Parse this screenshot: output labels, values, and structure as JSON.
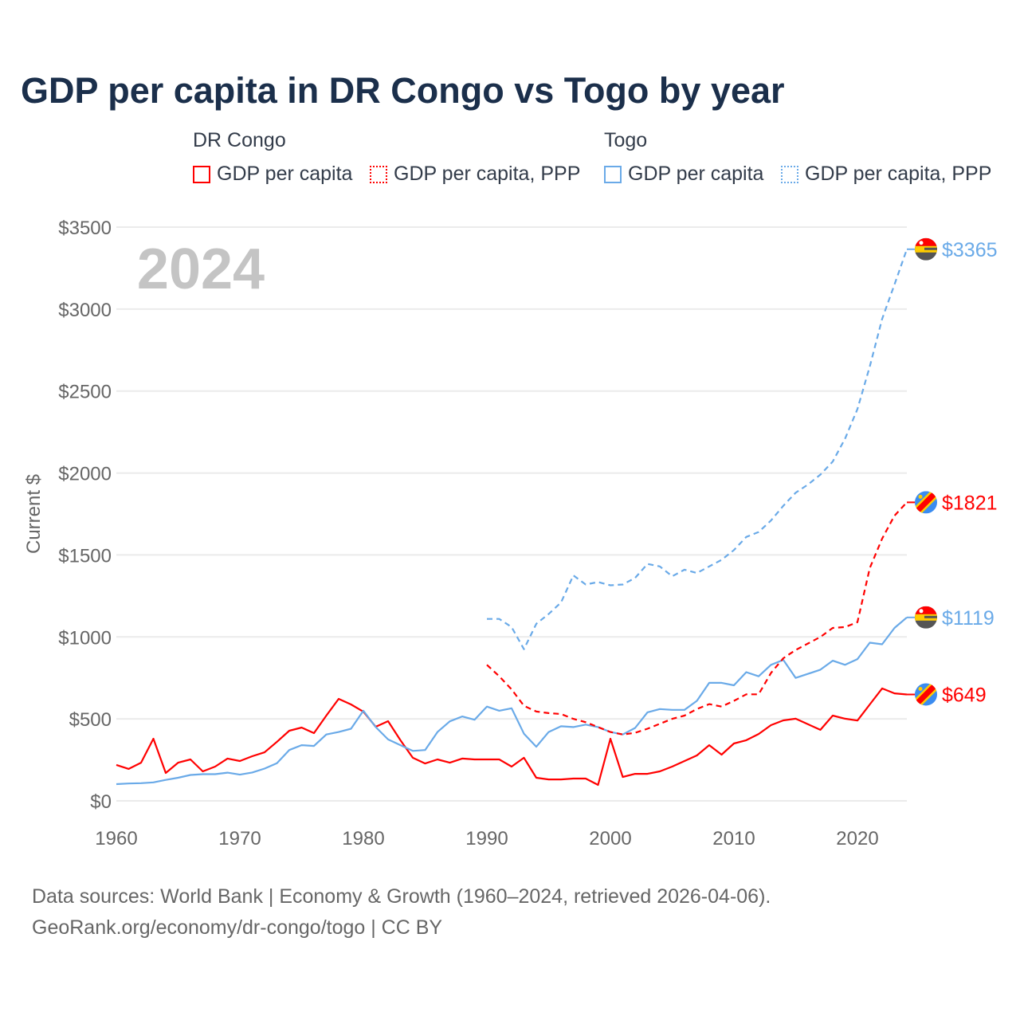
{
  "chart_data": {
    "type": "line",
    "title": "GDP per capita in DR Congo vs Togo by year",
    "ylabel": "Current $",
    "xlabel": "",
    "year_label": "2024",
    "xlim": [
      1960,
      2024
    ],
    "ylim": [
      0,
      3500
    ],
    "grid": true,
    "x_ticks": [
      1960,
      1970,
      1980,
      1990,
      2000,
      2010,
      2020
    ],
    "y_ticks": [
      0,
      500,
      1000,
      1500,
      2000,
      2500,
      3000,
      3500
    ],
    "y_tick_labels": [
      "$0",
      "$500",
      "$1000",
      "$1500",
      "$2000",
      "$2500",
      "$3000",
      "$3500"
    ],
    "legend": {
      "placement": "top",
      "groups": [
        {
          "country": "DR Congo",
          "items": [
            "GDP per capita",
            "GDP per capita, PPP"
          ]
        },
        {
          "country": "Togo",
          "items": [
            "GDP per capita",
            "GDP per capita, PPP"
          ]
        }
      ]
    },
    "series": [
      {
        "name": "DR Congo GDP per capita",
        "color": "#ff0000",
        "dash": false,
        "start": 1960,
        "end_label": "$649",
        "values": [
          219,
          195,
          233,
          379,
          170,
          233,
          253,
          180,
          209,
          258,
          243,
          272,
          296,
          360,
          428,
          447,
          413,
          520,
          622,
          588,
          544,
          452,
          486,
          370,
          263,
          228,
          253,
          233,
          258,
          253,
          253,
          253,
          209,
          263,
          141,
          131,
          131,
          136,
          136,
          97,
          379,
          146,
          165,
          165,
          180,
          209,
          243,
          277,
          340,
          282,
          350,
          370,
          408,
          462,
          491,
          501,
          467,
          433,
          520,
          501,
          490,
          588,
          686,
          656,
          649
        ]
      },
      {
        "name": "Togo GDP per capita",
        "color": "#6aaae8",
        "dash": false,
        "start": 1960,
        "end_label": "$1119",
        "values": [
          102,
          106,
          108,
          113,
          128,
          141,
          158,
          163,
          163,
          172,
          160,
          173,
          197,
          230,
          310,
          340,
          335,
          405,
          420,
          440,
          550,
          450,
          375,
          340,
          305,
          310,
          420,
          485,
          515,
          495,
          575,
          550,
          565,
          410,
          330,
          420,
          455,
          450,
          465,
          450,
          420,
          405,
          445,
          540,
          560,
          555,
          555,
          610,
          720,
          720,
          705,
          785,
          760,
          830,
          860,
          750,
          775,
          800,
          855,
          830,
          865,
          965,
          955,
          1055,
          1119
        ]
      },
      {
        "name": "DR Congo GDP per capita, PPP",
        "color": "#ff0000",
        "dash": true,
        "start": 1990,
        "end_label": "$1821",
        "values": [
          830,
          760,
          680,
          580,
          545,
          535,
          530,
          500,
          480,
          450,
          420,
          405,
          415,
          440,
          470,
          500,
          520,
          560,
          590,
          575,
          610,
          650,
          650,
          780,
          870,
          920,
          960,
          1000,
          1055,
          1060,
          1090,
          1420,
          1600,
          1740,
          1821
        ]
      },
      {
        "name": "Togo GDP per capita, PPP",
        "color": "#6aaae8",
        "dash": true,
        "start": 1990,
        "end_label": "$3365",
        "values": [
          1110,
          1110,
          1060,
          925,
          1080,
          1140,
          1210,
          1375,
          1320,
          1335,
          1315,
          1320,
          1360,
          1445,
          1430,
          1370,
          1410,
          1390,
          1430,
          1470,
          1530,
          1610,
          1640,
          1710,
          1800,
          1880,
          1930,
          1990,
          2070,
          2210,
          2390,
          2650,
          2940,
          3150,
          3365
        ]
      }
    ]
  },
  "footer": {
    "line1": "Data sources: World Bank | Economy & Growth (1960–2024, retrieved 2026-04-06).",
    "line2": "GeoRank.org/economy/dr-congo/togo | CC BY"
  }
}
